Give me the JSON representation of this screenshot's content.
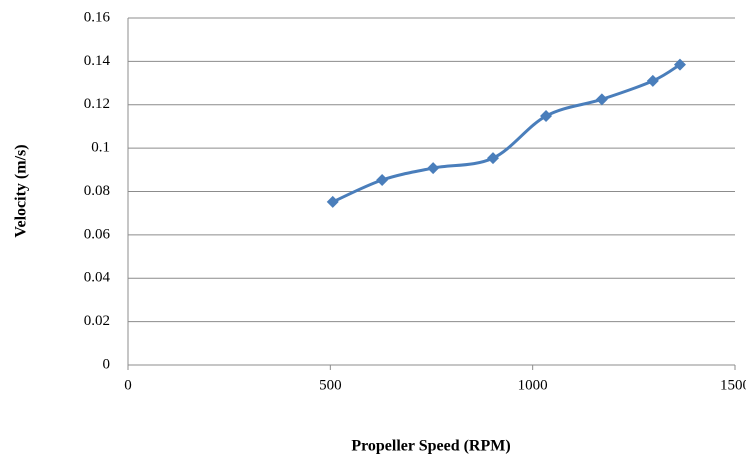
{
  "chart_data": {
    "type": "line",
    "x_label": "Propeller Speed (RPM)",
    "y_label": "Velocity (m/s)",
    "x": [
      506,
      628,
      754,
      902,
      1033,
      1171,
      1297,
      1364
    ],
    "series": [
      {
        "color": "#4a7ebb",
        "values": [
          0.0752,
          0.0853,
          0.0908,
          0.0954,
          0.1148,
          0.1225,
          0.131,
          0.1385
        ]
      }
    ],
    "xlim": [
      0,
      1500
    ],
    "xticks": [
      0,
      500,
      1000,
      1500
    ],
    "ylim": [
      0,
      0.16
    ],
    "yticks": [
      0,
      0.02,
      0.04,
      0.06,
      0.08,
      0.1,
      0.12,
      0.14,
      0.16
    ],
    "grid": true,
    "smooth": true,
    "marker": "diamond"
  }
}
